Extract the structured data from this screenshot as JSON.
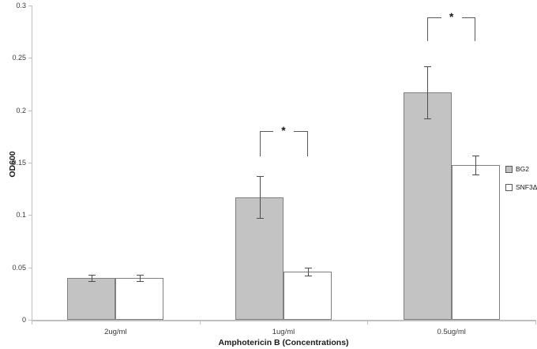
{
  "figure": {
    "background": "#ffffff",
    "axis_color": "#bfbfbf",
    "text_color": "#3a3a3a"
  },
  "chart_data": {
    "type": "bar",
    "title": "",
    "xlabel": "Amphotericin B (Concentrations)",
    "ylabel": "OD600",
    "ylim": [
      0,
      0.3
    ],
    "y_tick_step": 0.05,
    "y_tick_labels": [
      "0",
      "0.05",
      "0.1",
      "0.15",
      "0.2",
      "0.25",
      "0.3"
    ],
    "grid": false,
    "legend_position": "right",
    "categories": [
      "2ug/ml",
      "1ug/ml",
      "0.5ug/ml"
    ],
    "series": [
      {
        "name": "BG2",
        "fill": "#c3c3c3",
        "border": "#7f7f7f",
        "values": [
          0.04,
          0.117,
          0.217
        ],
        "errors": [
          0.003,
          0.02,
          0.025
        ]
      },
      {
        "name": "SNF3Δ",
        "fill": "#ffffff",
        "border": "#7f7f7f",
        "values": [
          0.04,
          0.046,
          0.148
        ],
        "errors": [
          0.003,
          0.004,
          0.009
        ]
      }
    ],
    "significance": [
      {
        "category_index": 1,
        "label": "*",
        "y_top": 0.18,
        "y_drop": 0.156
      },
      {
        "category_index": 2,
        "label": "*",
        "y_top": 0.289,
        "y_drop": 0.266
      }
    ]
  }
}
